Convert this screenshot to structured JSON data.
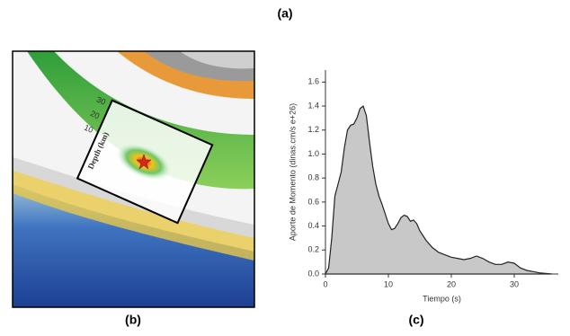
{
  "panels": {
    "a": "(a)",
    "b": "(b)",
    "c": "(c)"
  },
  "map": {
    "depth_label": "Depth (km)",
    "depth_ticks": [
      10,
      20,
      30
    ]
  },
  "chart_data": {
    "type": "area",
    "xlabel": "Tiempo (s)",
    "ylabel": "Aporte de Momento (dinas.cm/s e+26)",
    "x": [
      0,
      0.5,
      1,
      1.5,
      2,
      2.5,
      3,
      3.5,
      4,
      4.5,
      5,
      5.5,
      6,
      6.5,
      7,
      7.5,
      8,
      8.5,
      9,
      9.5,
      10,
      10.5,
      11,
      11.5,
      12,
      12.5,
      13,
      13.5,
      14,
      14.5,
      15,
      16,
      17,
      18,
      19,
      20,
      21,
      22,
      23,
      24,
      25,
      26,
      27,
      28,
      29,
      30,
      31,
      32,
      33,
      34,
      35,
      36
    ],
    "values": [
      0,
      0.05,
      0.3,
      0.65,
      0.75,
      0.85,
      1.05,
      1.2,
      1.24,
      1.25,
      1.3,
      1.38,
      1.4,
      1.32,
      1.1,
      0.9,
      0.75,
      0.65,
      0.58,
      0.5,
      0.42,
      0.37,
      0.38,
      0.42,
      0.47,
      0.49,
      0.48,
      0.44,
      0.45,
      0.42,
      0.36,
      0.28,
      0.22,
      0.18,
      0.16,
      0.14,
      0.13,
      0.12,
      0.13,
      0.15,
      0.13,
      0.1,
      0.08,
      0.08,
      0.1,
      0.09,
      0.05,
      0.03,
      0.02,
      0.01,
      0.005,
      0
    ],
    "color": "#c8c8c8",
    "xlim": [
      0,
      37
    ],
    "xticks": [
      0,
      10,
      20,
      30
    ],
    "ylim": [
      0,
      1.7
    ],
    "yticks": [
      {
        "value": 0,
        "label": "0.0"
      },
      0.2,
      0.4,
      0.6,
      0.8,
      {
        "value": 1,
        "label": "1.0"
      },
      1.2,
      1.4,
      1.6
    ]
  }
}
